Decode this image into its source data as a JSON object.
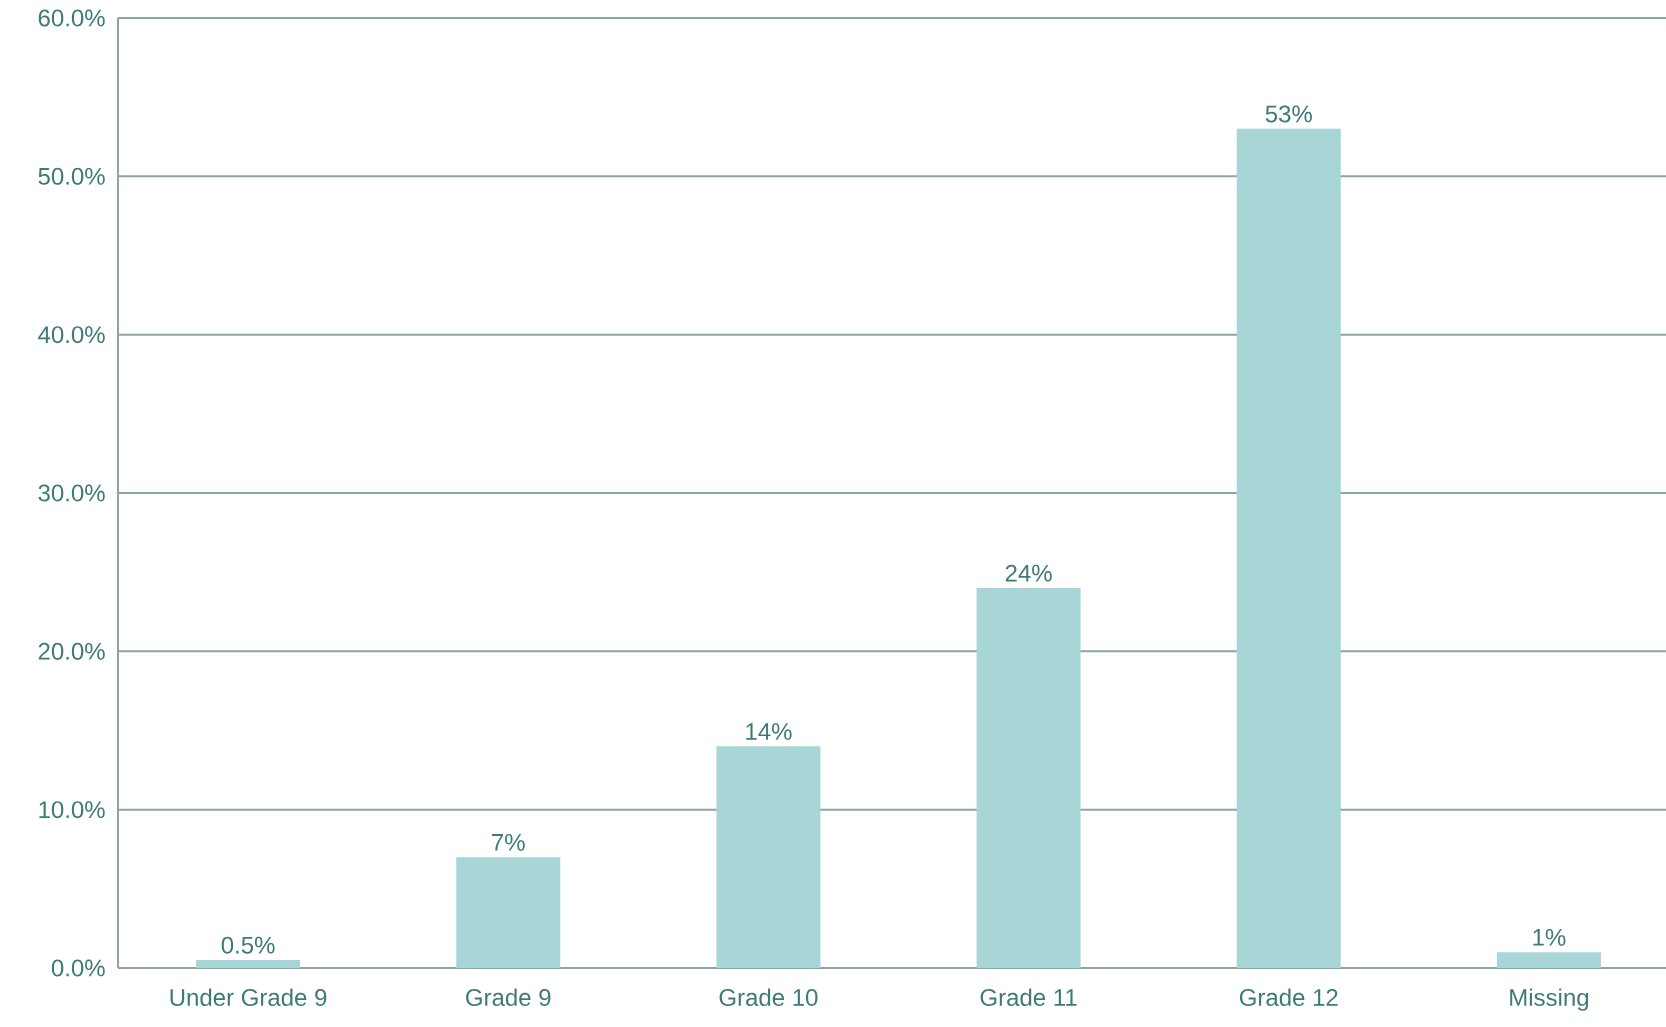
{
  "chart_data": {
    "type": "bar",
    "categories": [
      "Under Grade 9",
      "Grade 9",
      "Grade 10",
      "Grade 11",
      "Grade 12",
      "Missing"
    ],
    "values": [
      0.5,
      7,
      14,
      24,
      53,
      1
    ],
    "value_labels": [
      "0.5%",
      "7%",
      "14%",
      "24%",
      "53%",
      "1%"
    ],
    "color": "#a8d5d5",
    "ylim": [
      0,
      60
    ],
    "yticks": [
      {
        "value": 0,
        "label": "0.0%"
      },
      {
        "value": 10,
        "label": "10.0%"
      },
      {
        "value": 20,
        "label": "20.0%"
      },
      {
        "value": 30,
        "label": "30.0%"
      },
      {
        "value": 40,
        "label": "40.0%"
      },
      {
        "value": 50,
        "label": "50.0%"
      },
      {
        "value": 60,
        "label": "60.0%"
      }
    ],
    "grid": "y"
  }
}
